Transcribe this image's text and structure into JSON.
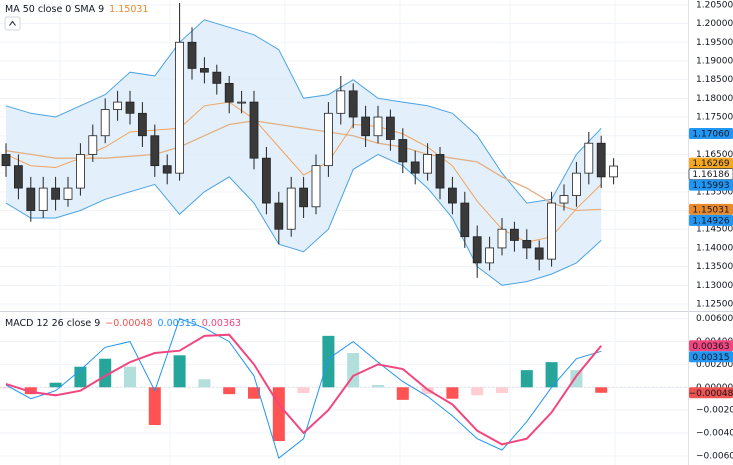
{
  "chart_data": {
    "type": "candlestick",
    "legend": {
      "label": "MA 50 close 0 SMA 9",
      "value": "1.15031"
    },
    "candles": {
      "open": [
        1.165,
        1.162,
        1.156,
        1.15,
        1.156,
        1.153,
        1.156,
        1.165,
        1.17,
        1.177,
        1.179,
        1.176,
        1.17,
        1.162,
        1.16,
        1.195,
        1.188,
        1.187,
        1.184,
        1.179,
        1.179,
        1.164,
        1.152,
        1.145,
        1.156,
        1.151,
        1.162,
        1.176,
        1.182,
        1.175,
        1.17,
        1.175,
        1.169,
        1.163,
        1.16,
        1.165,
        1.156,
        1.152,
        1.143,
        1.136,
        1.14,
        1.145,
        1.142,
        1.14,
        1.137,
        1.152,
        1.154,
        1.16,
        1.168,
        1.159
      ],
      "high": [
        1.168,
        1.165,
        1.159,
        1.159,
        1.159,
        1.159,
        1.168,
        1.173,
        1.18,
        1.182,
        1.182,
        1.179,
        1.173,
        1.165,
        1.2055,
        1.199,
        1.191,
        1.189,
        1.186,
        1.182,
        1.182,
        1.167,
        1.155,
        1.159,
        1.159,
        1.165,
        1.179,
        1.186,
        1.184,
        1.178,
        1.178,
        1.177,
        1.172,
        1.166,
        1.168,
        1.167,
        1.159,
        1.155,
        1.146,
        1.143,
        1.148,
        1.147,
        1.145,
        1.142,
        1.155,
        1.157,
        1.163,
        1.171,
        1.17,
        1.164
      ],
      "low": [
        1.159,
        1.153,
        1.147,
        1.148,
        1.15,
        1.151,
        1.154,
        1.163,
        1.168,
        1.174,
        1.173,
        1.167,
        1.159,
        1.157,
        1.158,
        1.185,
        1.184,
        1.181,
        1.176,
        1.176,
        1.161,
        1.149,
        1.141,
        1.143,
        1.148,
        1.149,
        1.159,
        1.173,
        1.172,
        1.167,
        1.168,
        1.166,
        1.16,
        1.157,
        1.158,
        1.153,
        1.149,
        1.14,
        1.132,
        1.134,
        1.138,
        1.139,
        1.137,
        1.134,
        1.135,
        1.15,
        1.151,
        1.157,
        1.156,
        1.157
      ],
      "close": [
        1.162,
        1.156,
        1.15,
        1.156,
        1.153,
        1.156,
        1.165,
        1.17,
        1.177,
        1.179,
        1.176,
        1.17,
        1.162,
        1.16,
        1.195,
        1.188,
        1.187,
        1.184,
        1.179,
        1.179,
        1.164,
        1.152,
        1.145,
        1.156,
        1.151,
        1.162,
        1.176,
        1.182,
        1.175,
        1.17,
        1.175,
        1.169,
        1.163,
        1.16,
        1.165,
        1.156,
        1.152,
        1.143,
        1.136,
        1.14,
        1.145,
        1.142,
        1.14,
        1.137,
        1.152,
        1.154,
        1.16,
        1.168,
        1.159,
        1.1619
      ],
      "up_color": "#ffffff",
      "down_color": "#3a3a3a",
      "edge_color": "#222222"
    },
    "indicator_x": [
      0,
      2,
      4,
      6,
      8,
      10,
      12,
      14,
      16,
      18,
      20,
      22,
      24,
      26,
      28,
      30,
      32,
      34,
      36,
      38,
      40,
      42,
      44,
      46,
      48
    ],
    "bollinger": {
      "line_color": "#4ba3e3",
      "fill_color": "#dcecfb",
      "basis_color": "#f2a35e",
      "upper": [
        1.178,
        1.176,
        1.175,
        1.178,
        1.181,
        1.187,
        1.186,
        1.195,
        1.201,
        1.199,
        1.197,
        1.193,
        1.18,
        1.181,
        1.185,
        1.18,
        1.179,
        1.178,
        1.176,
        1.17,
        1.16,
        1.152,
        1.153,
        1.165,
        1.172
      ],
      "basis": [
        1.165,
        1.162,
        1.1615,
        1.164,
        1.167,
        1.171,
        1.1715,
        1.172,
        1.178,
        1.179,
        1.1745,
        1.167,
        1.1595,
        1.163,
        1.173,
        1.1725,
        1.1705,
        1.167,
        1.162,
        1.1525,
        1.145,
        1.1415,
        1.143,
        1.1505,
        1.157
      ],
      "lower": [
        1.152,
        1.148,
        1.148,
        1.15,
        1.153,
        1.155,
        1.157,
        1.149,
        1.155,
        1.159,
        1.152,
        1.141,
        1.139,
        1.145,
        1.161,
        1.165,
        1.162,
        1.156,
        1.148,
        1.135,
        1.13,
        1.131,
        1.133,
        1.136,
        1.142
      ]
    },
    "ma": {
      "color": "#e3b083",
      "values": [
        1.166,
        1.165,
        1.164,
        1.164,
        1.164,
        1.1645,
        1.165,
        1.167,
        1.17,
        1.173,
        1.174,
        1.173,
        1.172,
        1.171,
        1.17,
        1.168,
        1.167,
        1.165,
        1.164,
        1.163,
        1.159,
        1.156,
        1.152,
        1.15,
        1.1503
      ]
    },
    "ylim": [
      1.1234,
      1.2063
    ],
    "yticks": [
      {
        "value": 1.125,
        "label": "1.12500"
      },
      {
        "value": 1.13,
        "label": "1.13000"
      },
      {
        "value": 1.135,
        "label": "1.13500"
      },
      {
        "value": 1.14,
        "label": "1.14000"
      },
      {
        "value": 1.145,
        "label": "1.14500"
      },
      {
        "value": 1.15,
        "label": "1.15000"
      },
      {
        "value": 1.155,
        "label": "1.15500"
      },
      {
        "value": 1.16,
        "label": "1.16000"
      },
      {
        "value": 1.165,
        "label": "1.16500"
      },
      {
        "value": 1.17,
        "label": "1.17000"
      },
      {
        "value": 1.175,
        "label": "1.17500"
      },
      {
        "value": 1.18,
        "label": "1.18000"
      },
      {
        "value": 1.185,
        "label": "1.18500"
      },
      {
        "value": 1.19,
        "label": "1.19000"
      },
      {
        "value": 1.195,
        "label": "1.19500"
      },
      {
        "value": 1.2,
        "label": "1.20000"
      },
      {
        "value": 1.205,
        "label": "1.20500"
      }
    ],
    "grid": true,
    "price_badges": [
      {
        "value": 1.1706,
        "label": "1.17060",
        "color": "#2196f3",
        "text_color": "#ffffff"
      },
      {
        "value": 1.16269,
        "label": "1.16269",
        "color": "#f5a623",
        "text_color": "#ffffff"
      },
      {
        "value": 1.16186,
        "label": "1.16186",
        "color": "#ffffff",
        "text_color": "#131722"
      },
      {
        "value": 1.15993,
        "label": "1.15993",
        "color": "#2196f3",
        "text_color": "#ffffff"
      },
      {
        "value": 1.15031,
        "label": "1.15031",
        "color": "#e8892b",
        "text_color": "#ffffff"
      },
      {
        "value": 1.14926,
        "label": "1.14926",
        "color": "#2196f3",
        "text_color": "#ffffff"
      }
    ],
    "macd": {
      "legend": {
        "label": "MACD 12 26 close 9",
        "histogram": "−0.00048",
        "macd": "0.00315",
        "signal": "0.00363"
      },
      "macd_color": "#2196f3",
      "signal_color": "#f2467e",
      "histogram_colors": {
        "pos_up": "#26a69a",
        "pos_down": "#b2dfdb",
        "neg_down": "#ff5252",
        "neg_up": "#ffcdd2"
      },
      "macd_values": [
        0.0002,
        -0.001,
        -0.0003,
        0.0015,
        0.0035,
        0.004,
        -0.0003,
        0.006,
        0.0052,
        0.004,
        0.001,
        -0.0062,
        -0.0045,
        0.0025,
        0.004,
        0.0022,
        0.0005,
        -0.0008,
        -0.0025,
        -0.0045,
        -0.0055,
        -0.003,
        0.0,
        0.0025,
        0.00315
      ],
      "signal_values": [
        0.0003,
        -0.0004,
        -0.0007,
        -0.0003,
        0.001,
        0.0022,
        0.003,
        0.0032,
        0.0045,
        0.0046,
        0.002,
        -0.0015,
        -0.004,
        -0.002,
        0.001,
        0.002,
        0.0016,
        -0.0002,
        -0.0015,
        -0.0038,
        -0.005,
        -0.0045,
        -0.0022,
        0.001,
        0.00363
      ],
      "histogram": [
        -0.0001,
        -0.0006,
        0.0004,
        0.0018,
        0.0025,
        0.0018,
        -0.0033,
        0.0028,
        0.0007,
        -0.0006,
        -0.001,
        -0.0047,
        -0.0005,
        0.0045,
        0.003,
        0.0002,
        -0.0011,
        -0.0006,
        -0.001,
        -0.0007,
        -0.0005,
        0.0015,
        0.0022,
        0.0015,
        -0.00048
      ],
      "ylim": [
        -0.0068,
        0.0065
      ],
      "yticks": [
        {
          "value": 0.006,
          "label": "0.00600"
        },
        {
          "value": 0.004,
          "label": "0.00400"
        },
        {
          "value": 0.002,
          "label": "0.00200"
        },
        {
          "value": 0,
          "label": "0.00000"
        },
        {
          "value": -0.002,
          "label": "−0.00200"
        },
        {
          "value": -0.004,
          "label": "−0.00400"
        },
        {
          "value": -0.006,
          "label": "−0.00600"
        }
      ],
      "badges": [
        {
          "value": 0.00363,
          "label": "0.00363",
          "color": "#f2467e",
          "text_color": "#ffffff"
        },
        {
          "value": 0.00315,
          "label": "0.00315",
          "color": "#2196f3",
          "text_color": "#ffffff"
        },
        {
          "value": -0.00048,
          "label": "−0.00048",
          "color": "#ef5350",
          "text_color": "#ffffff"
        }
      ]
    }
  }
}
